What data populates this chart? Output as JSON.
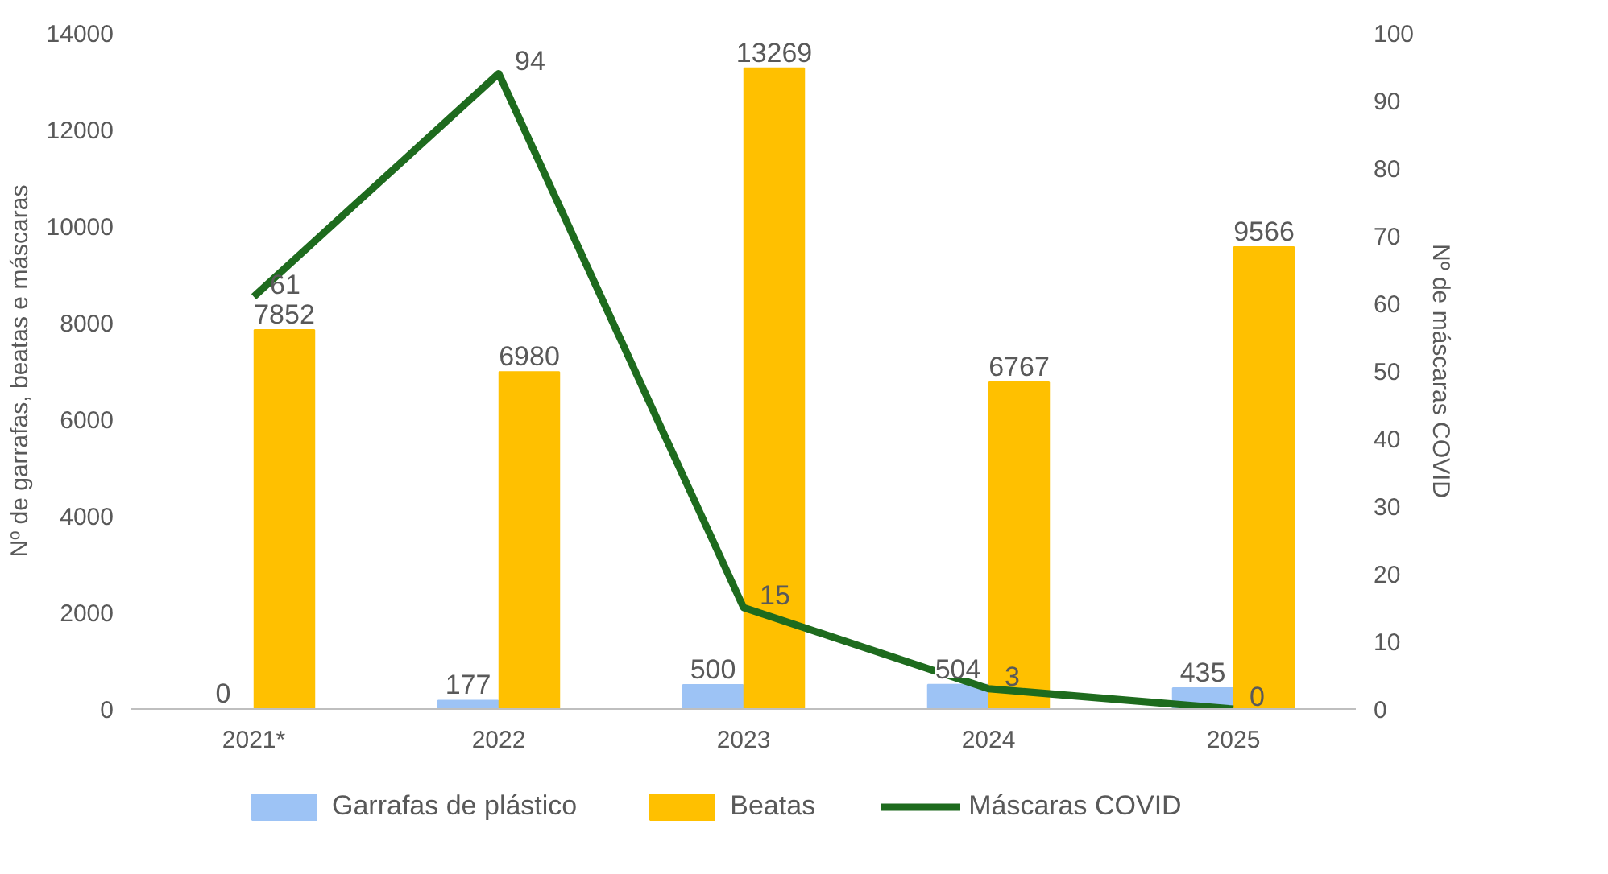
{
  "chart_data": {
    "type": "bar",
    "categories": [
      "2021*",
      "2022",
      "2023",
      "2024",
      "2025"
    ],
    "ylabel": "Nº de garrafas, beatas e máscaras",
    "y2label": "Nº de máscaras COVID",
    "series": [
      {
        "name": "Garrafas de plástico",
        "color": "#9dc3f5",
        "values": [
          0,
          177,
          500,
          504,
          435
        ]
      },
      {
        "name": "Beatas",
        "color": "#ffc000",
        "values": [
          7852,
          6980,
          13269,
          6767,
          9566
        ]
      },
      {
        "name": "Máscaras COVID",
        "type": "line",
        "axis": "y2",
        "color": "#1e6b1e",
        "values": [
          61,
          94,
          15,
          3,
          0
        ]
      }
    ],
    "ylim": [
      0,
      14000
    ],
    "yticks": [
      0,
      2000,
      4000,
      6000,
      8000,
      10000,
      12000,
      14000
    ],
    "y2lim": [
      0,
      100
    ],
    "y2ticks": [
      0,
      10,
      20,
      30,
      40,
      50,
      60,
      70,
      80,
      90,
      100
    ],
    "grid": false,
    "legend": "bottom",
    "data_labels": true,
    "marker": "none",
    "line_style": "solid"
  }
}
